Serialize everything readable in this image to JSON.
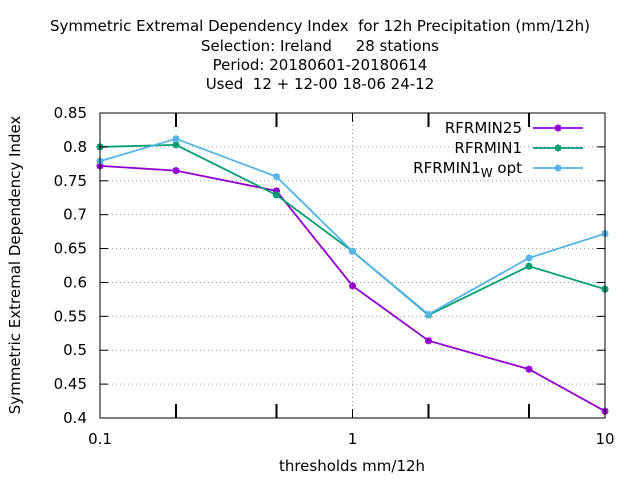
{
  "chart_data": {
    "type": "line",
    "title_lines": [
      "Symmetric Extremal Dependency Index  for 12h Precipitation (mm/12h)",
      "Selection: Ireland     28 stations",
      "Period: 20180601-20180614",
      "Used  12 + 12-00 18-06 24-12"
    ],
    "xlabel": "thresholds mm/12h",
    "ylabel": "Symmetric Extremal Dependency Index",
    "x_scale": "log",
    "xlim": [
      0.1,
      10
    ],
    "ylim": [
      0.4,
      0.85
    ],
    "x_tick_labels": [
      {
        "value": 0.1,
        "label": "0.1"
      },
      {
        "value": 1,
        "label": "1"
      },
      {
        "value": 10,
        "label": "10"
      }
    ],
    "y_tick_labels": [
      {
        "value": 0.4,
        "label": "0.4"
      },
      {
        "value": 0.45,
        "label": "0.45"
      },
      {
        "value": 0.5,
        "label": "0.5"
      },
      {
        "value": 0.55,
        "label": "0.55"
      },
      {
        "value": 0.6,
        "label": "0.6"
      },
      {
        "value": 0.65,
        "label": "0.65"
      },
      {
        "value": 0.7,
        "label": "0.7"
      },
      {
        "value": 0.75,
        "label": "0.75"
      },
      {
        "value": 0.8,
        "label": "0.8"
      },
      {
        "value": 0.85,
        "label": "0.85"
      }
    ],
    "x_minor_ticks": [
      0.2,
      0.5,
      2,
      5
    ],
    "grid": true,
    "legend_position": "top-right",
    "x": [
      0.1,
      0.2,
      0.5,
      1,
      2,
      5,
      10
    ],
    "series": [
      {
        "name": "RFRMIN25",
        "color": "#9400d3",
        "values": [
          0.772,
          0.765,
          0.735,
          0.595,
          0.514,
          0.472,
          0.41
        ]
      },
      {
        "name": "RFRMIN1",
        "color": "#009e73",
        "values": [
          0.8,
          0.803,
          0.729,
          0.646,
          0.552,
          0.624,
          0.59
        ]
      },
      {
        "name": "RFRMIN1",
        "name_subscript": "W",
        "name_suffix": "opt",
        "color": "#56b4e9",
        "values": [
          0.779,
          0.812,
          0.756,
          0.646,
          0.553,
          0.636,
          0.672
        ]
      }
    ]
  }
}
